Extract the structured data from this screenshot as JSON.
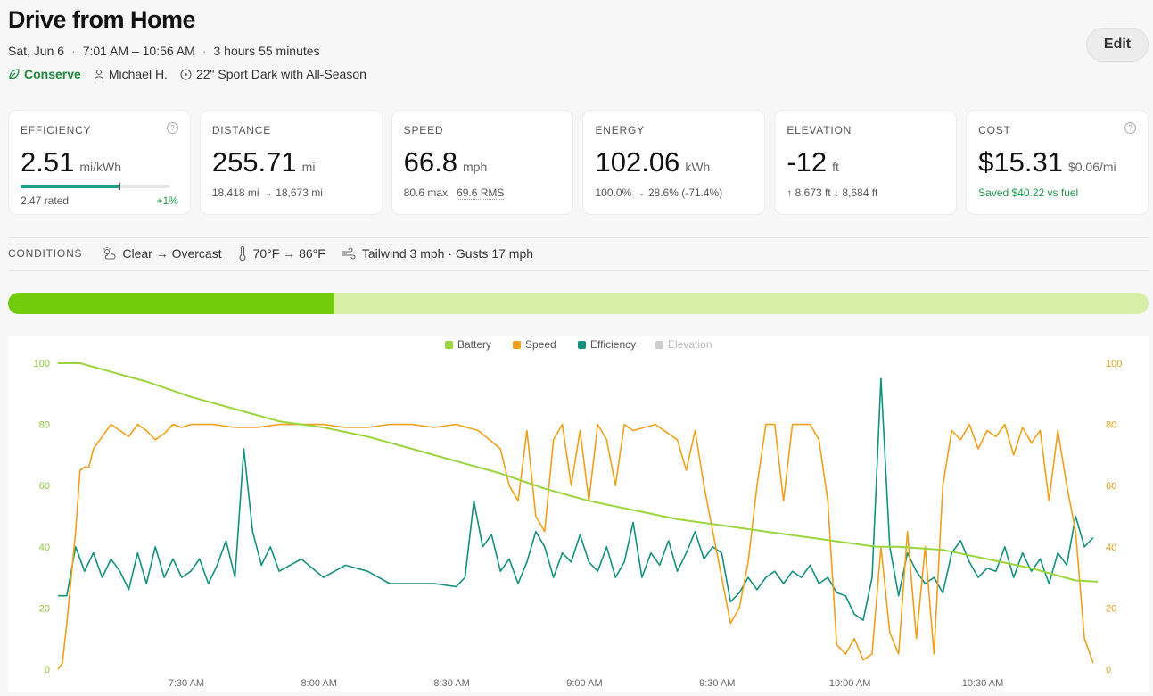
{
  "header": {
    "title": "Drive from Home",
    "date": "Sat, Jun 6",
    "time_range": "7:01 AM – 10:56 AM",
    "duration": "3 hours 55 minutes",
    "mode": "Conserve",
    "driver": "Michael H.",
    "wheels": "22\" Sport Dark with All-Season",
    "edit_label": "Edit"
  },
  "cards": {
    "efficiency": {
      "label": "EFFICIENCY",
      "value": "2.51",
      "unit": "mi/kWh",
      "rated": "2.47 rated",
      "delta": "+1%",
      "progress_fraction": 0.67
    },
    "distance": {
      "label": "DISTANCE",
      "value": "255.71",
      "unit": "mi",
      "sub": "18,418 mi → 18,673 mi"
    },
    "speed": {
      "label": "SPEED",
      "value": "66.8",
      "unit": "mph",
      "sub_max": "80.6 max",
      "sub_rms": "69.6 RMS"
    },
    "energy": {
      "label": "ENERGY",
      "value": "102.06",
      "unit": "kWh",
      "sub": "100.0% → 28.6% (-71.4%)"
    },
    "elevation": {
      "label": "ELEVATION",
      "value": "-12",
      "unit": "ft",
      "sub": "↑ 8,673 ft  ↓ 8,684 ft"
    },
    "cost": {
      "label": "COST",
      "value": "$15.31",
      "unit": "$0.06/mi",
      "sub": "Saved $40.22 vs fuel"
    }
  },
  "conditions": {
    "label": "CONDITIONS",
    "sky": "Clear → Overcast",
    "temp": "70°F → 86°F",
    "wind": "Tailwind 3 mph · Gusts 17 mph"
  },
  "battery_bar": {
    "fraction": 0.286
  },
  "colors": {
    "battery": "#9bd53d",
    "speed": "#f0a01a",
    "efficiency": "#13907e",
    "elevation": "#cccccc",
    "accent_green": "#1f8a3e"
  },
  "chart_data": {
    "type": "line",
    "legend": [
      "Battery",
      "Speed",
      "Efficiency",
      "Elevation"
    ],
    "legend_position": "top-center",
    "x_ticks": [
      "7:30 AM",
      "8:00 AM",
      "8:30 AM",
      "9:00 AM",
      "9:30 AM",
      "10:00 AM",
      "10:30 AM"
    ],
    "x_range_minutes": [
      0,
      235
    ],
    "y_left_ticks": [
      "0",
      "20",
      "40",
      "60",
      "80",
      "100"
    ],
    "y_right_ticks": [
      "0",
      "20",
      "40",
      "60",
      "80",
      "100"
    ],
    "ylim": [
      0,
      100
    ],
    "series": [
      {
        "name": "Battery",
        "x": [
          0,
          5,
          10,
          20,
          30,
          40,
          50,
          60,
          70,
          80,
          90,
          100,
          110,
          120,
          130,
          140,
          150,
          160,
          170,
          180,
          185,
          190,
          200,
          210,
          220,
          230,
          235
        ],
        "values": [
          100,
          100,
          98,
          94,
          89,
          85,
          81,
          79,
          76,
          72,
          68,
          64,
          59,
          55,
          52,
          49,
          47,
          45,
          43,
          41,
          40,
          40,
          39,
          36,
          33,
          29,
          28.6
        ]
      },
      {
        "name": "Speed",
        "x": [
          0,
          1,
          2,
          3,
          4,
          5,
          6,
          7,
          8,
          10,
          12,
          14,
          16,
          18,
          20,
          22,
          24,
          26,
          28,
          30,
          35,
          40,
          45,
          50,
          55,
          60,
          65,
          70,
          75,
          80,
          85,
          90,
          95,
          100,
          102,
          104,
          106,
          108,
          110,
          112,
          114,
          116,
          118,
          120,
          122,
          124,
          126,
          128,
          130,
          135,
          140,
          142,
          144,
          146,
          148,
          150,
          152,
          154,
          156,
          158,
          160,
          162,
          164,
          166,
          168,
          170,
          172,
          174,
          176,
          178,
          180,
          182,
          184,
          186,
          188,
          190,
          192,
          194,
          196,
          198,
          200,
          202,
          204,
          206,
          208,
          210,
          212,
          214,
          216,
          218,
          220,
          222,
          224,
          226,
          228,
          230,
          232,
          234
        ],
        "values": [
          0,
          2,
          15,
          30,
          45,
          65,
          66,
          66,
          72,
          76,
          80,
          78,
          76,
          80,
          78,
          75,
          77,
          80,
          79,
          80,
          80,
          79,
          79,
          80,
          80,
          80,
          79,
          79,
          80,
          80,
          79,
          80,
          78,
          72,
          60,
          55,
          78,
          50,
          45,
          75,
          80,
          60,
          78,
          55,
          80,
          75,
          60,
          80,
          78,
          80,
          75,
          65,
          78,
          60,
          45,
          30,
          15,
          20,
          35,
          60,
          80,
          80,
          55,
          80,
          80,
          80,
          75,
          55,
          8,
          5,
          10,
          3,
          5,
          40,
          12,
          5,
          45,
          10,
          40,
          5,
          60,
          78,
          75,
          80,
          72,
          78,
          76,
          80,
          70,
          79,
          74,
          78,
          55,
          78,
          60,
          45,
          10,
          2
        ]
      },
      {
        "name": "Efficiency",
        "x": [
          0,
          2,
          4,
          6,
          8,
          10,
          12,
          14,
          16,
          18,
          20,
          22,
          24,
          26,
          28,
          30,
          32,
          34,
          36,
          38,
          40,
          42,
          44,
          46,
          48,
          50,
          55,
          60,
          65,
          70,
          75,
          80,
          85,
          90,
          92,
          94,
          96,
          98,
          100,
          102,
          104,
          106,
          108,
          110,
          112,
          114,
          116,
          118,
          120,
          122,
          124,
          126,
          128,
          130,
          132,
          134,
          136,
          138,
          140,
          142,
          144,
          146,
          148,
          150,
          152,
          154,
          156,
          158,
          160,
          162,
          164,
          166,
          168,
          170,
          172,
          174,
          176,
          178,
          180,
          182,
          184,
          186,
          188,
          190,
          192,
          194,
          196,
          198,
          200,
          202,
          204,
          206,
          208,
          210,
          212,
          214,
          216,
          218,
          220,
          222,
          224,
          226,
          228,
          230,
          232,
          234
        ],
        "values": [
          24,
          24,
          40,
          32,
          38,
          30,
          36,
          32,
          26,
          38,
          28,
          40,
          30,
          36,
          30,
          32,
          36,
          28,
          34,
          42,
          30,
          72,
          45,
          34,
          40,
          32,
          36,
          30,
          34,
          32,
          28,
          28,
          28,
          27,
          30,
          55,
          40,
          44,
          32,
          36,
          28,
          35,
          45,
          40,
          30,
          38,
          35,
          44,
          35,
          32,
          40,
          30,
          35,
          48,
          30,
          38,
          34,
          42,
          32,
          38,
          45,
          36,
          40,
          38,
          22,
          25,
          30,
          26,
          30,
          32,
          28,
          32,
          30,
          34,
          28,
          30,
          25,
          24,
          18,
          16,
          30,
          95,
          40,
          24,
          38,
          32,
          28,
          30,
          25,
          38,
          42,
          35,
          30,
          33,
          32,
          40,
          30,
          38,
          32,
          36,
          28,
          38,
          34,
          50,
          40,
          43
        ]
      },
      {
        "name": "Elevation",
        "x": [],
        "values": []
      }
    ]
  }
}
